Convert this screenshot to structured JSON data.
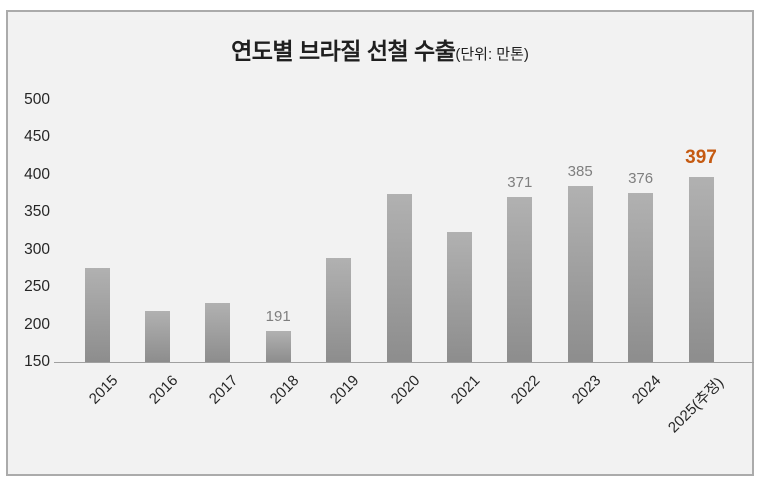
{
  "window": {
    "background": "#ffffff"
  },
  "chart": {
    "frame_background": "#f2f2f2",
    "frame_border_color": "#ababab",
    "bar_color_top": "#b1b1b1",
    "bar_color_bottom": "#8d8d8d",
    "axis_line_color": "#a0a0a0",
    "tick_label_color": "#262626",
    "data_label_color": "#7f7f7f",
    "highlight_label_color": "#c55a11",
    "title_color": "#1f1f1f"
  },
  "chart_data": {
    "type": "bar",
    "title": "연도별 브라질 선철 수출",
    "subtitle": "(단위: 만톤)",
    "categories": [
      "2015",
      "2016",
      "2017",
      "2018",
      "2019",
      "2020",
      "2021",
      "2022",
      "2023",
      "2024",
      "2025(추정)"
    ],
    "values": [
      275,
      218,
      229,
      191,
      289,
      374,
      324,
      371,
      385,
      376,
      397
    ],
    "data_labels": [
      "",
      "",
      "",
      "191",
      "",
      "",
      "",
      "371",
      "385",
      "376",
      "397"
    ],
    "highlight_index": 10,
    "xlabel": "",
    "ylabel": "",
    "ylim": [
      150,
      500
    ],
    "yticks": [
      150,
      200,
      250,
      300,
      350,
      400,
      450,
      500
    ],
    "grid": false,
    "legend": false,
    "x_tick_rotation_deg": 45
  }
}
